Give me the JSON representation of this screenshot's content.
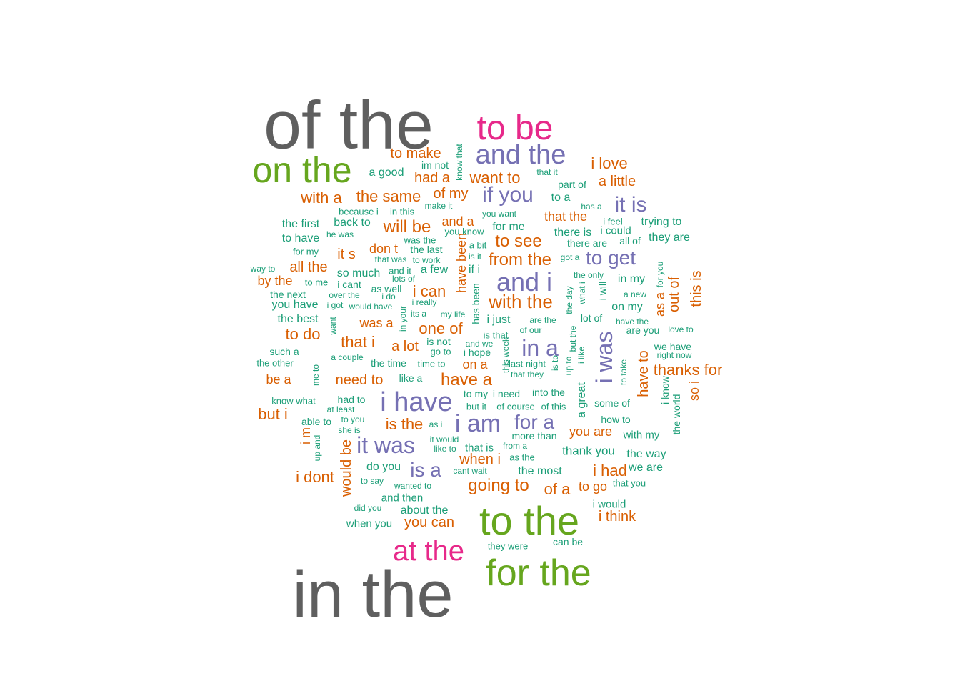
{
  "palette": {
    "gray": "#5f5f5f",
    "pink": "#e7298a",
    "green": "#66a61e",
    "purple": "#7570b3",
    "orange": "#d95f02",
    "teal": "#1b9e77"
  },
  "words": [
    {
      "text": "of the",
      "c": "gray"
    },
    {
      "text": "in the",
      "c": "gray"
    },
    {
      "text": "to be",
      "c": "pink"
    },
    {
      "text": "at the",
      "c": "pink"
    },
    {
      "text": "on the",
      "c": "green"
    },
    {
      "text": "to the",
      "c": "green"
    },
    {
      "text": "for the",
      "c": "green"
    },
    {
      "text": "and the",
      "c": "purple"
    },
    {
      "text": "i have",
      "c": "purple"
    },
    {
      "text": "and i",
      "c": "purple"
    },
    {
      "text": "i am",
      "c": "purple"
    },
    {
      "text": "it was",
      "c": "purple"
    },
    {
      "text": "in a",
      "c": "purple"
    },
    {
      "text": "i was",
      "c": "purple"
    },
    {
      "text": "if you",
      "c": "purple"
    },
    {
      "text": "it is",
      "c": "purple"
    },
    {
      "text": "to get",
      "c": "purple"
    },
    {
      "text": "is a",
      "c": "purple"
    },
    {
      "text": "for a",
      "c": "purple"
    },
    {
      "text": "with the",
      "c": "orange"
    },
    {
      "text": "have a",
      "c": "orange"
    },
    {
      "text": "going to",
      "c": "orange"
    },
    {
      "text": "to see",
      "c": "orange"
    },
    {
      "text": "will be",
      "c": "orange"
    },
    {
      "text": "from the",
      "c": "orange"
    },
    {
      "text": "i can",
      "c": "orange"
    },
    {
      "text": "one of",
      "c": "orange"
    },
    {
      "text": "that i",
      "c": "orange"
    },
    {
      "text": "i love",
      "c": "orange"
    },
    {
      "text": "the same",
      "c": "orange"
    },
    {
      "text": "with a",
      "c": "orange"
    },
    {
      "text": "want to",
      "c": "orange"
    },
    {
      "text": "a little",
      "c": "orange"
    },
    {
      "text": "of my",
      "c": "orange"
    },
    {
      "text": "had a",
      "c": "orange"
    },
    {
      "text": "to make",
      "c": "orange"
    },
    {
      "text": "that the",
      "c": "orange"
    },
    {
      "text": "and a",
      "c": "orange"
    },
    {
      "text": "don t",
      "c": "orange"
    },
    {
      "text": "it s",
      "c": "orange"
    },
    {
      "text": "all the",
      "c": "orange"
    },
    {
      "text": "by the",
      "c": "orange"
    },
    {
      "text": "to do",
      "c": "orange"
    },
    {
      "text": "was a",
      "c": "orange"
    },
    {
      "text": "a lot",
      "c": "orange"
    },
    {
      "text": "need to",
      "c": "orange"
    },
    {
      "text": "be a",
      "c": "orange"
    },
    {
      "text": "but i",
      "c": "orange"
    },
    {
      "text": "is the",
      "c": "orange"
    },
    {
      "text": "i dont",
      "c": "orange"
    },
    {
      "text": "would be",
      "c": "orange"
    },
    {
      "text": "i m",
      "c": "orange"
    },
    {
      "text": "when i",
      "c": "orange"
    },
    {
      "text": "of a",
      "c": "orange"
    },
    {
      "text": "you can",
      "c": "orange"
    },
    {
      "text": "to go",
      "c": "orange"
    },
    {
      "text": "i had",
      "c": "orange"
    },
    {
      "text": "i think",
      "c": "orange"
    },
    {
      "text": "you are",
      "c": "orange"
    },
    {
      "text": "thanks for",
      "c": "orange"
    },
    {
      "text": "have to",
      "c": "orange"
    },
    {
      "text": "out of",
      "c": "orange"
    },
    {
      "text": "as a",
      "c": "orange"
    },
    {
      "text": "this is",
      "c": "orange"
    },
    {
      "text": "so i",
      "c": "orange"
    },
    {
      "text": "on a",
      "c": "orange"
    },
    {
      "text": "have been",
      "c": "orange"
    },
    {
      "text": "for me",
      "c": "teal"
    },
    {
      "text": "a good",
      "c": "teal"
    },
    {
      "text": "im not",
      "c": "teal"
    },
    {
      "text": "know that",
      "c": "teal"
    },
    {
      "text": "that it",
      "c": "teal"
    },
    {
      "text": "part of",
      "c": "teal"
    },
    {
      "text": "to a",
      "c": "teal"
    },
    {
      "text": "has a",
      "c": "teal"
    },
    {
      "text": "because i",
      "c": "teal"
    },
    {
      "text": "in this",
      "c": "teal"
    },
    {
      "text": "make it",
      "c": "teal"
    },
    {
      "text": "you want",
      "c": "teal"
    },
    {
      "text": "the first",
      "c": "teal"
    },
    {
      "text": "back to",
      "c": "teal"
    },
    {
      "text": "he was",
      "c": "teal"
    },
    {
      "text": "to have",
      "c": "teal"
    },
    {
      "text": "for my",
      "c": "teal"
    },
    {
      "text": "was the",
      "c": "teal"
    },
    {
      "text": "you know",
      "c": "teal"
    },
    {
      "text": "a bit",
      "c": "teal"
    },
    {
      "text": "the last",
      "c": "teal"
    },
    {
      "text": "there is",
      "c": "teal"
    },
    {
      "text": "i feel",
      "c": "teal"
    },
    {
      "text": "trying to",
      "c": "teal"
    },
    {
      "text": "i could",
      "c": "teal"
    },
    {
      "text": "there are",
      "c": "teal"
    },
    {
      "text": "all of",
      "c": "teal"
    },
    {
      "text": "they are",
      "c": "teal"
    },
    {
      "text": "that was",
      "c": "teal"
    },
    {
      "text": "to work",
      "c": "teal"
    },
    {
      "text": "is it",
      "c": "teal"
    },
    {
      "text": "got a",
      "c": "teal"
    },
    {
      "text": "way to",
      "c": "teal"
    },
    {
      "text": "so much",
      "c": "teal"
    },
    {
      "text": "and it",
      "c": "teal"
    },
    {
      "text": "a few",
      "c": "teal"
    },
    {
      "text": "if i",
      "c": "teal"
    },
    {
      "text": "to me",
      "c": "teal"
    },
    {
      "text": "lots of",
      "c": "teal"
    },
    {
      "text": "i cant",
      "c": "teal"
    },
    {
      "text": "the only",
      "c": "teal"
    },
    {
      "text": "in my",
      "c": "teal"
    },
    {
      "text": "for you",
      "c": "teal"
    },
    {
      "text": "as well",
      "c": "teal"
    },
    {
      "text": "the next",
      "c": "teal"
    },
    {
      "text": "over the",
      "c": "teal"
    },
    {
      "text": "i do",
      "c": "teal"
    },
    {
      "text": "what i",
      "c": "teal"
    },
    {
      "text": "the day",
      "c": "teal"
    },
    {
      "text": "i will",
      "c": "teal"
    },
    {
      "text": "a new",
      "c": "teal"
    },
    {
      "text": "you have",
      "c": "teal"
    },
    {
      "text": "i got",
      "c": "teal"
    },
    {
      "text": "would have",
      "c": "teal"
    },
    {
      "text": "i really",
      "c": "teal"
    },
    {
      "text": "on my",
      "c": "teal"
    },
    {
      "text": "in your",
      "c": "teal"
    },
    {
      "text": "the best",
      "c": "teal"
    },
    {
      "text": "its a",
      "c": "teal"
    },
    {
      "text": "my life",
      "c": "teal"
    },
    {
      "text": "has been",
      "c": "teal"
    },
    {
      "text": "i just",
      "c": "teal"
    },
    {
      "text": "are the",
      "c": "teal"
    },
    {
      "text": "lot of",
      "c": "teal"
    },
    {
      "text": "have the",
      "c": "teal"
    },
    {
      "text": "want",
      "c": "teal"
    },
    {
      "text": "of our",
      "c": "teal"
    },
    {
      "text": "but the",
      "c": "teal"
    },
    {
      "text": "are you",
      "c": "teal"
    },
    {
      "text": "love to",
      "c": "teal"
    },
    {
      "text": "is that",
      "c": "teal"
    },
    {
      "text": "is not",
      "c": "teal"
    },
    {
      "text": "and we",
      "c": "teal"
    },
    {
      "text": "such a",
      "c": "teal"
    },
    {
      "text": "go to",
      "c": "teal"
    },
    {
      "text": "i hope",
      "c": "teal"
    },
    {
      "text": "this week",
      "c": "teal"
    },
    {
      "text": "we have",
      "c": "teal"
    },
    {
      "text": "right now",
      "c": "teal"
    },
    {
      "text": "a couple",
      "c": "teal"
    },
    {
      "text": "the other",
      "c": "teal"
    },
    {
      "text": "the time",
      "c": "teal"
    },
    {
      "text": "time to",
      "c": "teal"
    },
    {
      "text": "last night",
      "c": "teal"
    },
    {
      "text": "is to",
      "c": "teal"
    },
    {
      "text": "up to",
      "c": "teal"
    },
    {
      "text": "i like",
      "c": "teal"
    },
    {
      "text": "to take",
      "c": "teal"
    },
    {
      "text": "me to",
      "c": "teal"
    },
    {
      "text": "like a",
      "c": "teal"
    },
    {
      "text": "that they",
      "c": "teal"
    },
    {
      "text": "i know",
      "c": "teal"
    },
    {
      "text": "to my",
      "c": "teal"
    },
    {
      "text": "i need",
      "c": "teal"
    },
    {
      "text": "into the",
      "c": "teal"
    },
    {
      "text": "a great",
      "c": "teal"
    },
    {
      "text": "know what",
      "c": "teal"
    },
    {
      "text": "had to",
      "c": "teal"
    },
    {
      "text": "but it",
      "c": "teal"
    },
    {
      "text": "of course",
      "c": "teal"
    },
    {
      "text": "of this",
      "c": "teal"
    },
    {
      "text": "some of",
      "c": "teal"
    },
    {
      "text": "the world",
      "c": "teal"
    },
    {
      "text": "at least",
      "c": "teal"
    },
    {
      "text": "able to",
      "c": "teal"
    },
    {
      "text": "to you",
      "c": "teal"
    },
    {
      "text": "as i",
      "c": "teal"
    },
    {
      "text": "how to",
      "c": "teal"
    },
    {
      "text": "she is",
      "c": "teal"
    },
    {
      "text": "more than",
      "c": "teal"
    },
    {
      "text": "with my",
      "c": "teal"
    },
    {
      "text": "it would",
      "c": "teal"
    },
    {
      "text": "up and",
      "c": "teal"
    },
    {
      "text": "like to",
      "c": "teal"
    },
    {
      "text": "that is",
      "c": "teal"
    },
    {
      "text": "from a",
      "c": "teal"
    },
    {
      "text": "as the",
      "c": "teal"
    },
    {
      "text": "thank you",
      "c": "teal"
    },
    {
      "text": "the way",
      "c": "teal"
    },
    {
      "text": "do you",
      "c": "teal"
    },
    {
      "text": "cant wait",
      "c": "teal"
    },
    {
      "text": "the most",
      "c": "teal"
    },
    {
      "text": "we are",
      "c": "teal"
    },
    {
      "text": "to say",
      "c": "teal"
    },
    {
      "text": "wanted to",
      "c": "teal"
    },
    {
      "text": "that you",
      "c": "teal"
    },
    {
      "text": "and then",
      "c": "teal"
    },
    {
      "text": "i would",
      "c": "teal"
    },
    {
      "text": "did you",
      "c": "teal"
    },
    {
      "text": "about the",
      "c": "teal"
    },
    {
      "text": "when you",
      "c": "teal"
    },
    {
      "text": "they were",
      "c": "teal"
    },
    {
      "text": "can be",
      "c": "teal"
    }
  ]
}
